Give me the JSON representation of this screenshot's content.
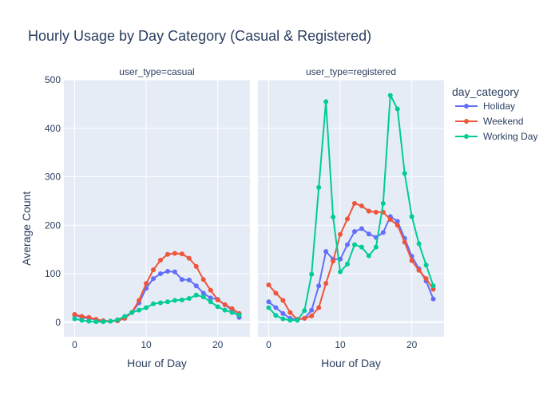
{
  "chart_data": {
    "type": "line",
    "title": "Hourly Usage by Day Category (Casual & Registered)",
    "ylabel": "Average Count",
    "ylim": [
      -30,
      500
    ],
    "yticks": [
      0,
      100,
      200,
      300,
      400,
      500
    ],
    "xlim": [
      -1.5,
      24.5
    ],
    "xticks": [
      0,
      10,
      20
    ],
    "grid": true,
    "legend": {
      "title": "day_category",
      "placement": "right",
      "items": [
        {
          "name": "Holiday",
          "color": "#636efa"
        },
        {
          "name": "Weekend",
          "color": "#ef553b"
        },
        {
          "name": "Working Day",
          "color": "#00cc96"
        }
      ]
    },
    "panels": [
      {
        "facet_label": "user_type=casual",
        "xlabel": "Hour of Day",
        "series": [
          {
            "name": "Holiday",
            "color": "#636efa",
            "x": [
              0,
              1,
              2,
              3,
              4,
              5,
              6,
              7,
              8,
              9,
              10,
              11,
              12,
              13,
              14,
              15,
              16,
              17,
              18,
              19,
              20,
              21,
              22,
              23
            ],
            "y": [
              15,
              10,
              8,
              5,
              3,
              2,
              3,
              8,
              20,
              40,
              70,
              90,
              100,
              105,
              104,
              88,
              87,
              75,
              60,
              50,
              47,
              36,
              25,
              10
            ]
          },
          {
            "name": "Weekend",
            "color": "#ef553b",
            "x": [
              0,
              1,
              2,
              3,
              4,
              5,
              6,
              7,
              8,
              9,
              10,
              11,
              12,
              13,
              14,
              15,
              16,
              17,
              18,
              19,
              20,
              21,
              22,
              23
            ],
            "y": [
              16,
              12,
              10,
              6,
              3,
              2,
              3,
              8,
              20,
              45,
              80,
              108,
              128,
              140,
              142,
              141,
              132,
              115,
              88,
              66,
              46,
              36,
              28,
              18
            ]
          },
          {
            "name": "Working Day",
            "color": "#00cc96",
            "x": [
              0,
              1,
              2,
              3,
              4,
              5,
              6,
              7,
              8,
              9,
              10,
              11,
              12,
              13,
              14,
              15,
              16,
              17,
              18,
              19,
              20,
              21,
              22,
              23
            ],
            "y": [
              7,
              4,
              2,
              1,
              1,
              2,
              5,
              12,
              20,
              25,
              30,
              38,
              40,
              42,
              45,
              46,
              49,
              56,
              52,
              42,
              32,
              25,
              20,
              15
            ]
          }
        ]
      },
      {
        "facet_label": "user_type=registered",
        "xlabel": "Hour of Day",
        "series": [
          {
            "name": "Holiday",
            "color": "#636efa",
            "x": [
              0,
              1,
              2,
              3,
              4,
              5,
              6,
              7,
              8,
              9,
              10,
              11,
              12,
              13,
              14,
              15,
              16,
              17,
              18,
              19,
              20,
              21,
              22,
              23
            ],
            "y": [
              42,
              30,
              18,
              8,
              5,
              8,
              25,
              75,
              146,
              130,
              130,
              160,
              187,
              193,
              182,
              175,
              185,
              218,
              208,
              173,
              136,
              110,
              85,
              48
            ]
          },
          {
            "name": "Weekend",
            "color": "#ef553b",
            "x": [
              0,
              1,
              2,
              3,
              4,
              5,
              6,
              7,
              8,
              9,
              10,
              11,
              12,
              13,
              14,
              15,
              16,
              17,
              18,
              19,
              20,
              21,
              22,
              23
            ],
            "y": [
              77,
              60,
              45,
              20,
              6,
              8,
              13,
              30,
              80,
              126,
              181,
              213,
              245,
              240,
              229,
              227,
              227,
              212,
              200,
              165,
              127,
              107,
              90,
              68
            ]
          },
          {
            "name": "Working Day",
            "color": "#00cc96",
            "x": [
              0,
              1,
              2,
              3,
              4,
              5,
              6,
              7,
              8,
              9,
              10,
              11,
              12,
              13,
              14,
              15,
              16,
              17,
              18,
              19,
              20,
              21,
              22,
              23
            ],
            "y": [
              30,
              14,
              7,
              4,
              4,
              24,
              99,
              278,
              455,
              217,
              104,
              120,
              160,
              155,
              137,
              155,
              245,
              468,
              440,
              307,
              218,
              162,
              118,
              75
            ]
          }
        ]
      }
    ]
  }
}
